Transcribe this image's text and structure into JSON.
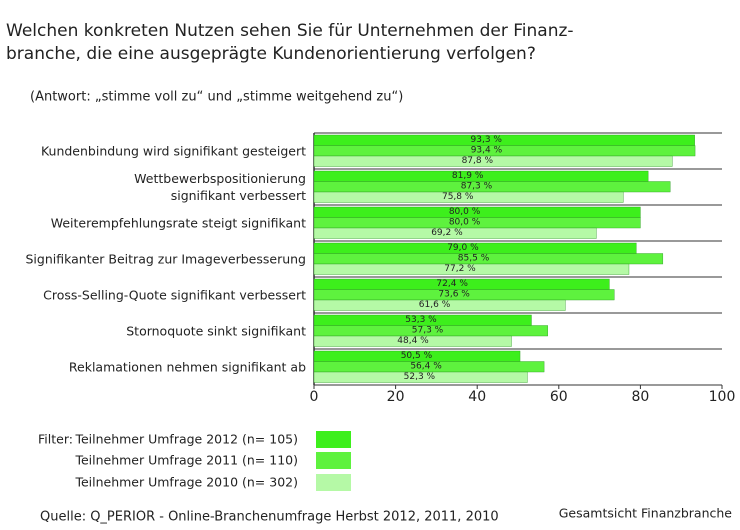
{
  "chart_data": {
    "type": "hbar",
    "title": "Welchen konkreten Nutzen sehen Sie für Unternehmen der Finanz-\nbranche, die eine ausgeprägte Kundenorientierung verfolgen?",
    "subtitle": "(Antwort: „stimme voll zu“ und „stimme weitgehend zu“)",
    "categories": [
      "Kundenbindung wird signifikant gesteigert",
      "Wettbewerbspositionierung\nsignifikant verbessert",
      "Weiterempfehlungsrate steigt signifikant",
      "Signifikanter Beitrag zur Imageverbesserung",
      "Cross-Selling-Quote signifikant verbessert",
      "Stornoquote sinkt signifikant",
      "Reklamationen nehmen signifikant ab"
    ],
    "series": [
      {
        "name": "Teilnehmer Umfrage 2012 (n= 105)",
        "color": "#3def1c",
        "values": [
          93.3,
          81.9,
          80.0,
          79.0,
          72.4,
          53.3,
          50.5
        ],
        "value_labels": [
          "93,3 %",
          "81,9 %",
          "80,0 %",
          "79,0 %",
          "72,4 %",
          "53,3 %",
          "50,5 %"
        ]
      },
      {
        "name": "Teilnehmer Umfrage 2011 (n= 110)",
        "color": "#5ef23e",
        "values": [
          93.4,
          87.3,
          80.0,
          85.5,
          73.6,
          57.3,
          56.4
        ],
        "value_labels": [
          "93,4 %",
          "87,3 %",
          "80,0 %",
          "85,5 %",
          "73,6 %",
          "57,3 %",
          "56,4 %"
        ]
      },
      {
        "name": "Teilnehmer Umfrage 2010 (n= 302)",
        "color": "#b5f9a6",
        "values": [
          87.8,
          75.8,
          69.2,
          77.2,
          61.6,
          48.4,
          52.3
        ],
        "value_labels": [
          "87,8 %",
          "75,8 %",
          "69,2 %",
          "77,2 %",
          "61,6 %",
          "48,4 %",
          "52,3 %"
        ]
      }
    ],
    "xlim": [
      0,
      100
    ],
    "xticks": [
      0,
      20,
      40,
      60,
      80,
      100
    ],
    "legend_title": "Filter:",
    "source": "Quelle: Q_PERIOR - Online-Branchenumfrage Herbst 2012, 2011, 2010",
    "footer_right": "Gesamtsicht Finanzbranche"
  }
}
